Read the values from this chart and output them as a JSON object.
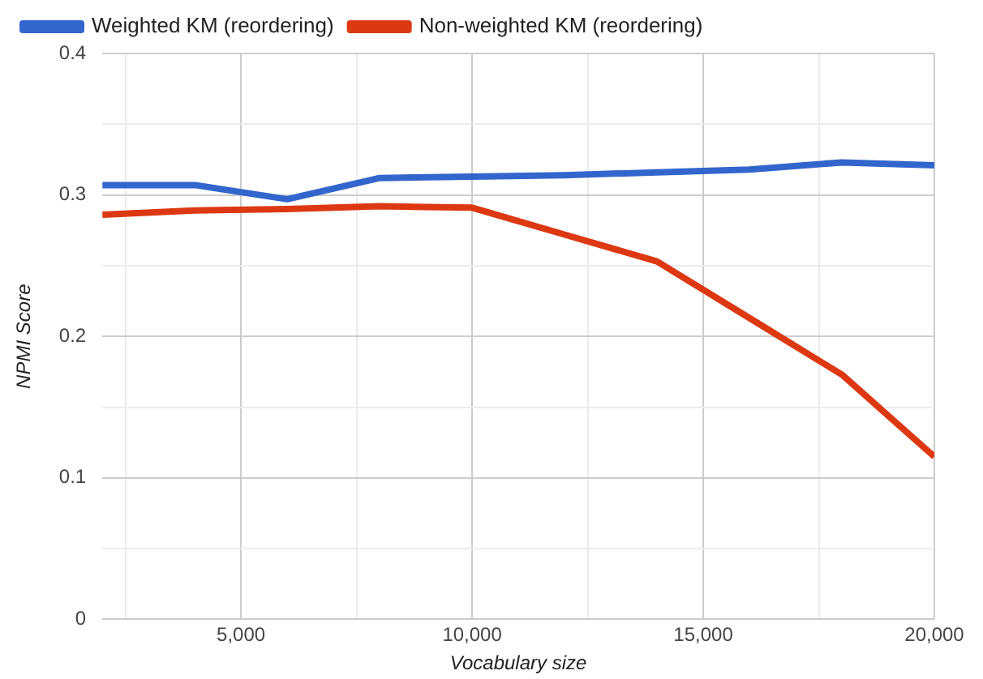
{
  "chart_data": {
    "type": "line",
    "xlabel": "Vocabulary size",
    "ylabel": "NPMI Score",
    "x": [
      2000,
      4000,
      6000,
      8000,
      10000,
      12000,
      14000,
      16000,
      18000,
      20000
    ],
    "series": [
      {
        "name": "Weighted KM (reordering)",
        "color": "#3366cc",
        "values": [
          0.307,
          0.307,
          0.297,
          0.312,
          0.313,
          0.314,
          0.316,
          0.318,
          0.323,
          0.321
        ]
      },
      {
        "name": "Non-weighted KM (reordering)",
        "color": "#dc3912",
        "values": [
          0.286,
          0.289,
          0.29,
          0.292,
          0.291,
          0.272,
          0.253,
          0.213,
          0.173,
          0.115
        ]
      }
    ],
    "xlim": [
      2000,
      20000
    ],
    "xticks": [
      {
        "value": 2500,
        "label": null
      },
      {
        "value": 5000,
        "label": "5,000"
      },
      {
        "value": 7500,
        "label": null
      },
      {
        "value": 10000,
        "label": "10,000"
      },
      {
        "value": 12500,
        "label": null
      },
      {
        "value": 15000,
        "label": "15,000"
      },
      {
        "value": 17500,
        "label": null
      },
      {
        "value": 20000,
        "label": "20,000"
      }
    ],
    "ylim": [
      0,
      0.4
    ],
    "yticks": [
      0,
      {
        "value": 0.05,
        "label": null
      },
      0.1,
      {
        "value": 0.15,
        "label": null
      },
      0.2,
      {
        "value": 0.25,
        "label": null
      },
      0.3,
      {
        "value": 0.35,
        "label": null
      },
      0.4
    ],
    "grid": true,
    "legend": "top left",
    "marker": "none",
    "line_style": "solid"
  }
}
